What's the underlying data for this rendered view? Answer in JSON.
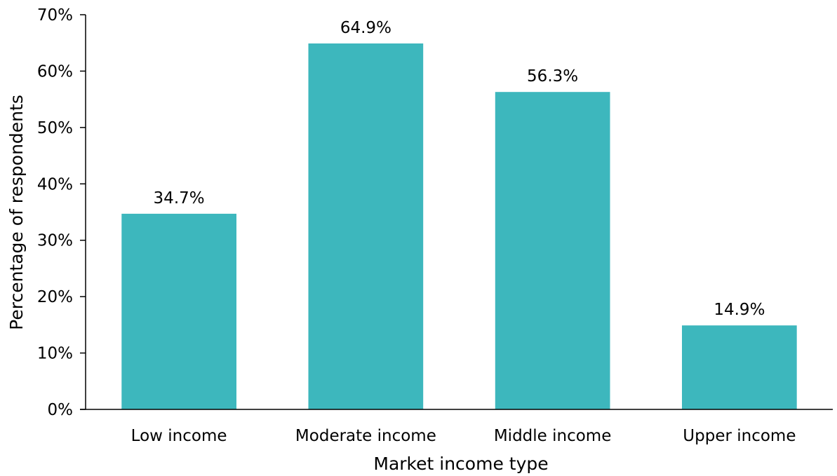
{
  "chart_data": {
    "type": "bar",
    "title": "",
    "xlabel": "Market income type",
    "ylabel": "Percentage of respondents",
    "categories": [
      "Low income",
      "Moderate income",
      "Middle income",
      "Upper income"
    ],
    "values": [
      34.7,
      64.9,
      56.3,
      14.9
    ],
    "data_labels": [
      "34.7%",
      "64.9%",
      "56.3%",
      "14.9%"
    ],
    "ylim": [
      0,
      70
    ],
    "yticks": [
      0,
      10,
      20,
      30,
      40,
      50,
      60,
      70
    ],
    "ytick_labels": [
      "0%",
      "10%",
      "20%",
      "30%",
      "40%",
      "50%",
      "60%",
      "70%"
    ],
    "grid": false,
    "legend": "none",
    "bar_color": "#3db7bd",
    "axis_color": "#000000"
  }
}
